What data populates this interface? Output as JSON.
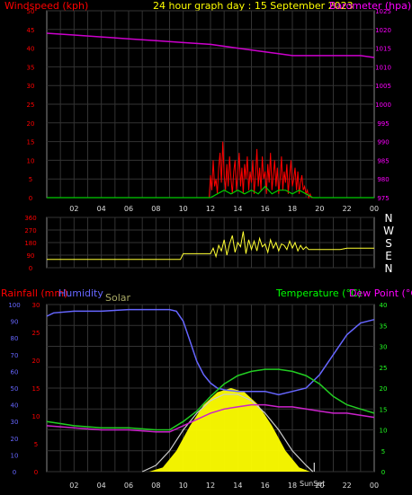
{
  "header": {
    "left_label": "Windspeed (kph)",
    "center_label": "24 hour graph day : 15 September 2023",
    "right_label": "Barometer (hpa)"
  },
  "bottom_header": {
    "rainfall_label": "Rainfall (mm)",
    "humidity_label": "Humidity",
    "solar_label": "Solar",
    "temperature_label": "Temperature (°C)",
    "dewpoint_label": "Dew Point (°C)"
  },
  "sunset_label": "SunSet",
  "colors": {
    "wind": "#ff0000",
    "gust": "#00cc00",
    "barometer": "#cc00cc",
    "direction": "#ffff33",
    "humidity": "#6666ff",
    "temperature": "#22cc22",
    "dewpoint": "#cc22cc",
    "solar": "#ffff00",
    "solar_max": "#cccccc",
    "rain": "#ff0000",
    "axis_text_red": "#ff0000",
    "axis_text_magenta": "#ff00ff"
  },
  "chart_data": [
    {
      "type": "line",
      "x_ticks": [
        "02",
        "04",
        "06",
        "08",
        "10",
        "12",
        "14",
        "16",
        "18",
        "20",
        "22",
        "00"
      ],
      "xlim": [
        0,
        24
      ],
      "left_axis": {
        "label": "Windspeed (kph)",
        "ylim": [
          0,
          50
        ],
        "ticks": [
          0,
          5,
          10,
          15,
          20,
          25,
          30,
          35,
          40,
          45,
          50
        ]
      },
      "right_axis": {
        "label": "Barometer (hpa)",
        "ylim": [
          975,
          1025
        ],
        "ticks": [
          975,
          980,
          985,
          990,
          995,
          1000,
          1005,
          1010,
          1015,
          1020,
          1025
        ]
      },
      "series": [
        {
          "name": "Barometer (hpa)",
          "axis": "right",
          "x": [
            0,
            2,
            4,
            6,
            8,
            10,
            12,
            14,
            16,
            17,
            18,
            19,
            20,
            21,
            22,
            23,
            24
          ],
          "y": [
            1019,
            1018.5,
            1018,
            1017.5,
            1017,
            1016.5,
            1016,
            1015,
            1014,
            1013.5,
            1013,
            1013,
            1013,
            1013,
            1013,
            1013,
            1012.5
          ]
        },
        {
          "name": "Windspeed (kph)",
          "axis": "left",
          "x": [
            0,
            11.9,
            12.0,
            12.1,
            12.2,
            12.3,
            12.4,
            12.5,
            12.6,
            12.7,
            12.8,
            12.9,
            13.0,
            13.1,
            13.2,
            13.3,
            13.4,
            13.5,
            13.6,
            13.7,
            13.8,
            13.9,
            14.0,
            14.1,
            14.2,
            14.3,
            14.4,
            14.5,
            14.6,
            14.7,
            14.8,
            14.9,
            15.0,
            15.1,
            15.2,
            15.3,
            15.4,
            15.5,
            15.6,
            15.7,
            15.8,
            15.9,
            16.0,
            16.1,
            16.2,
            16.3,
            16.4,
            16.5,
            16.6,
            16.7,
            16.8,
            16.9,
            17.0,
            17.1,
            17.2,
            17.3,
            17.4,
            17.5,
            17.6,
            17.7,
            17.8,
            17.9,
            18.0,
            18.1,
            18.2,
            18.3,
            18.4,
            18.5,
            18.6,
            18.7,
            18.8,
            18.9,
            19.0,
            19.1,
            19.2,
            19.3,
            19.4,
            24
          ],
          "y": [
            0,
            0,
            6,
            2,
            10,
            3,
            5,
            1,
            8,
            12,
            4,
            15,
            6,
            2,
            9,
            3,
            11,
            5,
            1,
            7,
            10,
            2,
            6,
            12,
            3,
            8,
            1,
            9,
            5,
            11,
            2,
            7,
            4,
            10,
            1,
            6,
            13,
            3,
            8,
            2,
            11,
            5,
            7,
            1,
            9,
            4,
            12,
            2,
            6,
            10,
            3,
            8,
            1,
            5,
            11,
            2,
            7,
            4,
            9,
            1,
            6,
            10,
            3,
            5,
            8,
            2,
            7,
            1,
            4,
            6,
            2,
            3,
            1,
            2,
            0,
            1,
            0,
            0
          ]
        },
        {
          "name": "Gust",
          "axis": "left",
          "x": [
            0,
            12,
            12.5,
            13,
            13.5,
            14,
            14.5,
            15,
            15.5,
            16,
            16.5,
            17,
            17.5,
            18,
            18.5,
            19,
            19.5,
            24
          ],
          "y": [
            0,
            0,
            1,
            2,
            1,
            2,
            1,
            2,
            1,
            3,
            1,
            2,
            2,
            1,
            2,
            1,
            0,
            0
          ]
        }
      ]
    },
    {
      "type": "scatter",
      "y_ticks": [
        0,
        90,
        180,
        270,
        360
      ],
      "ylim": [
        0,
        360
      ],
      "right_labels": [
        "N",
        "W",
        "S",
        "E",
        "N"
      ],
      "series": [
        {
          "name": "Wind direction",
          "x": [
            0,
            9.8,
            10.0,
            12,
            12.2,
            12.4,
            12.6,
            12.8,
            13.0,
            13.2,
            13.4,
            13.6,
            13.8,
            14.0,
            14.2,
            14.4,
            14.6,
            14.8,
            15.0,
            15.2,
            15.4,
            15.6,
            15.8,
            16.0,
            16.2,
            16.4,
            16.6,
            16.8,
            17.0,
            17.2,
            17.4,
            17.6,
            17.8,
            18.0,
            18.2,
            18.4,
            18.6,
            18.8,
            19.0,
            19.2,
            21.5,
            22,
            24
          ],
          "y": [
            60,
            60,
            100,
            100,
            140,
            80,
            160,
            120,
            200,
            90,
            170,
            230,
            110,
            180,
            150,
            260,
            100,
            200,
            130,
            190,
            120,
            210,
            150,
            170,
            110,
            200,
            140,
            180,
            120,
            170,
            160,
            130,
            190,
            140,
            180,
            120,
            160,
            130,
            150,
            130,
            130,
            140,
            140
          ]
        }
      ]
    },
    {
      "type": "line",
      "x_ticks": [
        "02",
        "04",
        "06",
        "08",
        "10",
        "12",
        "14",
        "16",
        "18",
        "20",
        "22",
        "00"
      ],
      "xlim": [
        0,
        24
      ],
      "left_axes": [
        {
          "label": "Humidity",
          "ylim": [
            0,
            100
          ],
          "ticks": [
            0,
            10,
            20,
            30,
            40,
            50,
            60,
            70,
            80,
            90,
            100
          ]
        },
        {
          "label": "Rainfall (mm)",
          "ylim": [
            0,
            30
          ],
          "ticks": [
            0,
            5,
            10,
            15,
            20,
            25,
            30
          ]
        }
      ],
      "right_axis": {
        "label": "Temperature (°C)",
        "ylim": [
          0,
          40
        ],
        "ticks": [
          0,
          5,
          10,
          15,
          20,
          25,
          30,
          35,
          40
        ]
      },
      "series": [
        {
          "name": "Humidity",
          "axis": "humidity",
          "x": [
            0,
            0.5,
            2,
            4,
            6,
            8,
            9,
            9.5,
            10,
            10.5,
            11,
            11.5,
            12,
            12.5,
            13,
            14,
            15,
            16,
            17,
            18,
            19,
            20,
            21,
            22,
            23,
            24
          ],
          "y": [
            93,
            95,
            96,
            96,
            97,
            97,
            97,
            96,
            90,
            78,
            66,
            58,
            53,
            50,
            49,
            48,
            48,
            48,
            46,
            48,
            50,
            58,
            70,
            82,
            89,
            91
          ]
        },
        {
          "name": "Temperature (°C)",
          "axis": "temp",
          "x": [
            0,
            1,
            2,
            4,
            6,
            8,
            9,
            10,
            11,
            12,
            13,
            14,
            15,
            16,
            17,
            18,
            19,
            20,
            21,
            22,
            23,
            24
          ],
          "y": [
            12,
            11.5,
            11,
            10.5,
            10.5,
            10,
            10,
            12,
            14.5,
            18,
            21,
            23,
            24,
            24.5,
            24.5,
            24,
            23,
            21,
            18,
            16,
            15,
            14
          ]
        },
        {
          "name": "Dew Point (°C)",
          "axis": "temp",
          "x": [
            0,
            2,
            4,
            6,
            8,
            9,
            10,
            11,
            12,
            13,
            14,
            15,
            16,
            17,
            18,
            19,
            20,
            21,
            22,
            23,
            24
          ],
          "y": [
            11,
            10.5,
            10,
            10,
            9.5,
            9.5,
            11,
            12.5,
            14,
            15,
            15.5,
            16,
            16,
            15.5,
            15.5,
            15,
            14.5,
            14,
            14,
            13.5,
            13
          ]
        },
        {
          "name": "Solar",
          "axis": "temp",
          "x": [
            7.5,
            8.5,
            9.5,
            10.5,
            11.5,
            12.5,
            13.5,
            14.5,
            15.5,
            16.5,
            17.5,
            18.5,
            19.3
          ],
          "y": [
            0,
            1,
            5,
            11,
            16,
            19,
            20,
            19,
            16,
            11,
            5,
            1,
            0
          ]
        },
        {
          "name": "Solar (max)",
          "axis": "temp",
          "x": [
            7,
            8,
            9,
            10,
            11,
            12,
            13,
            14,
            15,
            16,
            17,
            18,
            19,
            19.5
          ],
          "y": [
            0,
            1.5,
            5,
            10,
            14,
            17,
            18.5,
            18.5,
            17,
            14,
            10,
            5,
            1.5,
            0
          ]
        }
      ],
      "sunset_x": 19.6
    }
  ]
}
